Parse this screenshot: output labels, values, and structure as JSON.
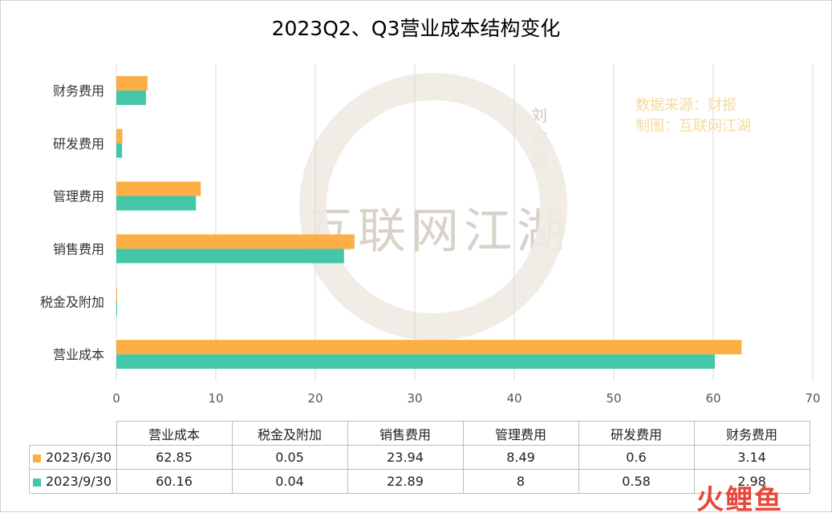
{
  "title": "2023Q2、Q3营业成本结构变化",
  "watermark": {
    "source_line": "数据来源：财报",
    "maker_line": "制图：互联网江湖",
    "brand": "互联网江湖",
    "seal": "刘志刚"
  },
  "corner_logo": "火鲤鱼",
  "colors": {
    "series_2023_6_30": "#fcaf45",
    "series_2023_9_30": "#44c7a8"
  },
  "chart_data": {
    "type": "bar",
    "orientation": "horizontal",
    "categories": [
      "营业成本",
      "税金及附加",
      "销售费用",
      "管理费用",
      "研发费用",
      "财务费用"
    ],
    "series": [
      {
        "name": "2023/6/30",
        "values": [
          62.85,
          0.05,
          23.94,
          8.49,
          0.6,
          3.14
        ]
      },
      {
        "name": "2023/9/30",
        "values": [
          60.16,
          0.04,
          22.89,
          8,
          0.58,
          2.98
        ]
      }
    ],
    "xlim": [
      0,
      70
    ],
    "xticks": [
      0,
      10,
      20,
      30,
      40,
      50,
      60,
      70
    ],
    "grid": true,
    "title": "2023Q2、Q3营业成本结构变化",
    "data_table": true
  },
  "table": {
    "headers": [
      "营业成本",
      "税金及附加",
      "销售费用",
      "管理费用",
      "研发费用",
      "财务费用"
    ],
    "rows": [
      {
        "label": "2023/6/30",
        "cells": [
          "62.85",
          "0.05",
          "23.94",
          "8.49",
          "0.6",
          "3.14"
        ]
      },
      {
        "label": "2023/9/30",
        "cells": [
          "60.16",
          "0.04",
          "22.89",
          "8",
          "0.58",
          "2.98"
        ]
      }
    ]
  }
}
